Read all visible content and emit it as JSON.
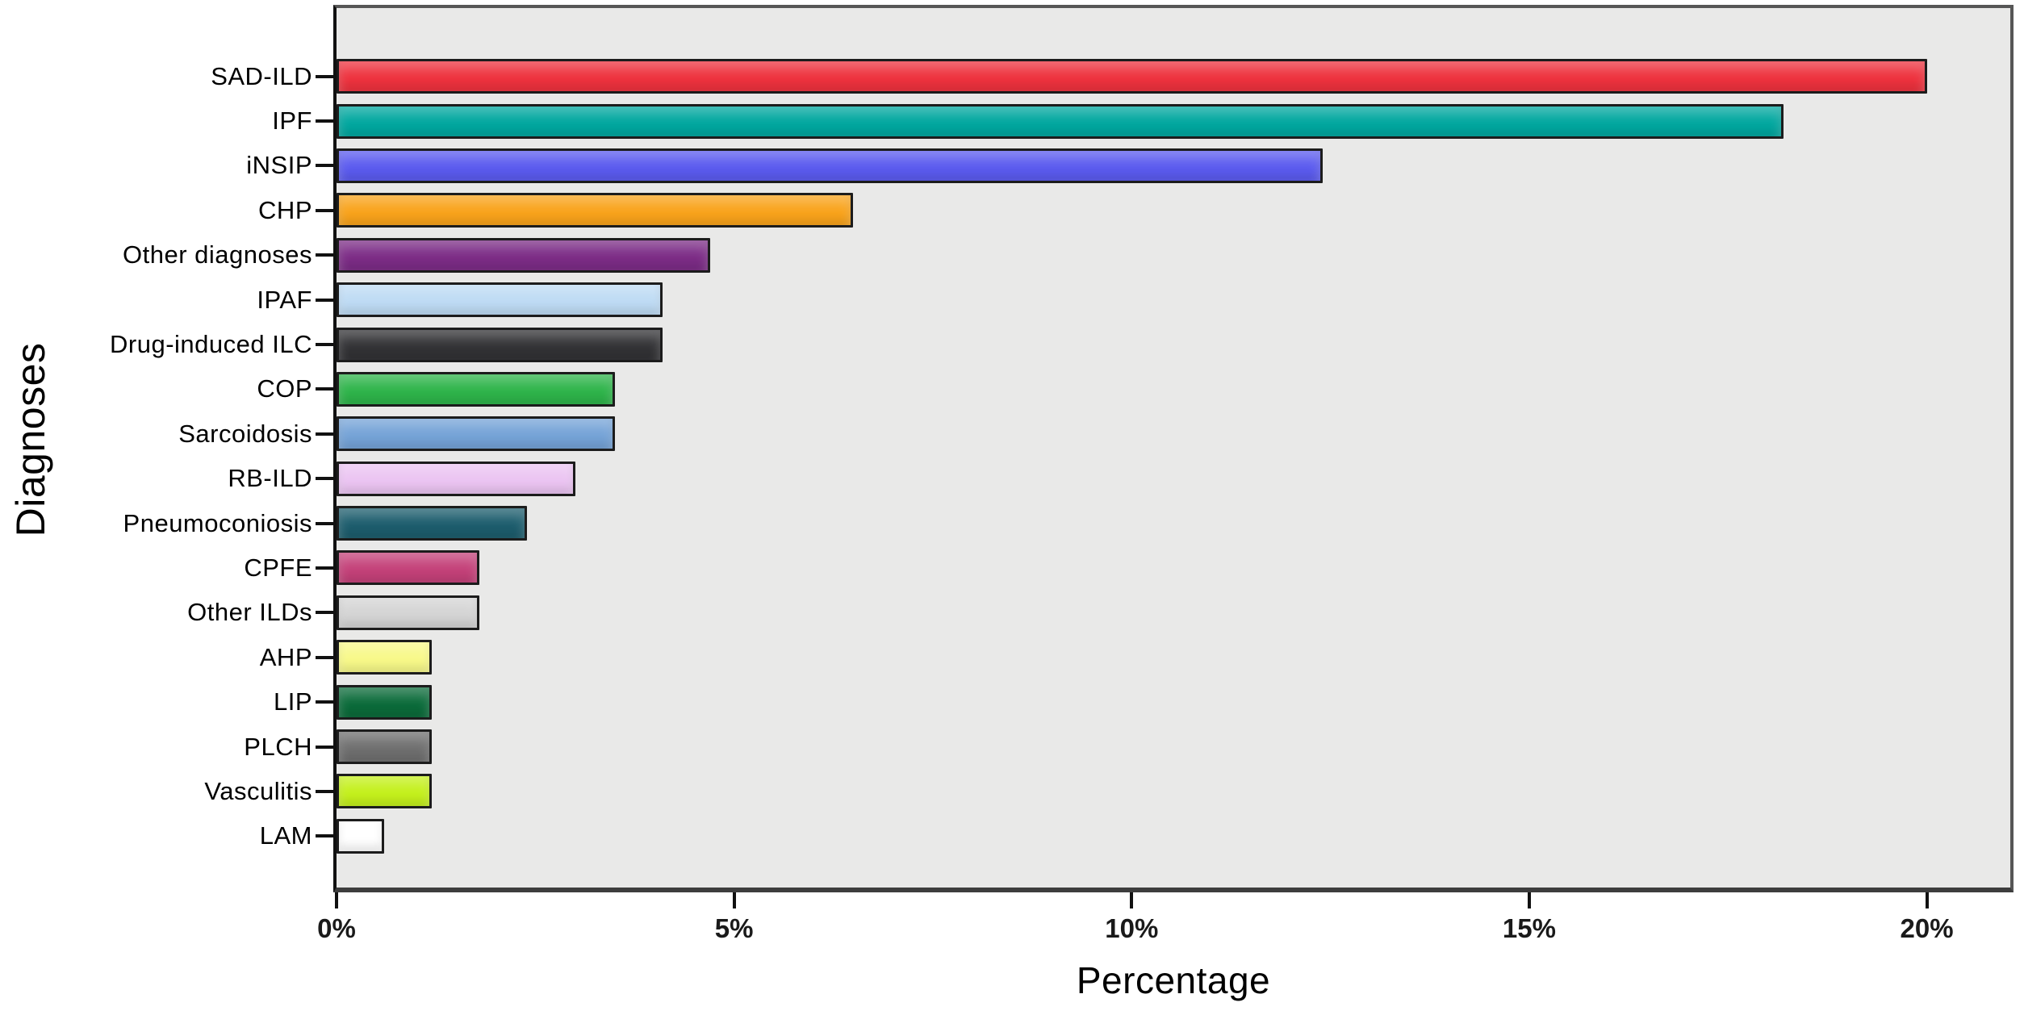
{
  "chart_data": {
    "type": "bar",
    "orientation": "horizontal",
    "title": "",
    "xlabel": "Percentage",
    "ylabel": "Diagnoses",
    "grid": false,
    "legend": false,
    "plot_background": "#e9e9e8",
    "categories": [
      "SAD-ILD",
      "IPF",
      "iNSIP",
      "CHP",
      "Other diagnoses",
      "IPAF",
      "Drug-induced ILC",
      "COP",
      "Sarcoidosis",
      "RB-ILD",
      "Pneumoconiosis",
      "CPFE",
      "Other ILDs",
      "AHP",
      "LIP",
      "PLCH",
      "Vasculitis",
      "LAM"
    ],
    "values": [
      20.0,
      18.2,
      12.4,
      6.5,
      4.7,
      4.1,
      4.1,
      3.5,
      3.5,
      3.0,
      2.4,
      1.8,
      1.8,
      1.2,
      1.2,
      1.2,
      1.2,
      0.6
    ],
    "bar_colors": [
      "#ee323e",
      "#00a79f",
      "#5b5bef",
      "#f9a31b",
      "#7c2c86",
      "#bedbf4",
      "#323235",
      "#2eb44a",
      "#75a3d7",
      "#ebc4f2",
      "#1d5d6d",
      "#c44179",
      "#d4d4d4",
      "#f8f989",
      "#0b6b3a",
      "#6f6f6f",
      "#c4f01c",
      "#ffffff"
    ],
    "x_axis": {
      "label": "Percentage",
      "ticks": [
        {
          "label": "0%",
          "value": 0
        },
        {
          "label": "5%",
          "value": 5
        },
        {
          "label": "10%",
          "value": 10
        },
        {
          "label": "15%",
          "value": 15
        },
        {
          "label": "20%",
          "value": 20
        }
      ],
      "max": 21.05
    },
    "y_axis": {
      "label": "Diagnoses"
    }
  }
}
